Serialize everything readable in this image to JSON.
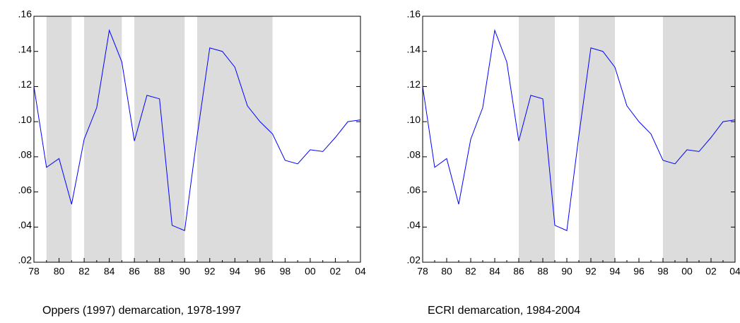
{
  "chart_data": [
    {
      "type": "line",
      "title": "Oppers (1997) demarcation, 1978-1997",
      "categories": [
        "78",
        null,
        "80",
        null,
        "82",
        null,
        "84",
        null,
        "86",
        null,
        "88",
        null,
        "90",
        null,
        "92",
        null,
        "94",
        null,
        "96",
        null,
        "98",
        null,
        "00",
        null,
        "02",
        null,
        "04"
      ],
      "series": [
        {
          "color": "#0000ff",
          "values": [
            0.12,
            0.074,
            0.079,
            0.053,
            0.09,
            0.108,
            0.152,
            0.134,
            0.089,
            0.115,
            0.113,
            0.041,
            0.038,
            0.092,
            0.142,
            0.14,
            0.131,
            0.109,
            0.1,
            0.093,
            0.078,
            0.076,
            0.084,
            0.083,
            0.091,
            0.1,
            0.101
          ]
        }
      ],
      "shaded": [
        [
          1,
          3
        ],
        [
          4,
          7
        ],
        [
          8,
          12
        ],
        [
          13,
          19
        ]
      ],
      "shade_color": "#dcdcdc",
      "ylim": [
        0.02,
        0.16
      ],
      "yticks": [
        {
          "value": 0.02,
          "label": ".02"
        },
        {
          "value": 0.04,
          "label": ".04"
        },
        {
          "value": 0.06,
          "label": ".06"
        },
        {
          "value": 0.08,
          "label": ".08"
        },
        {
          "value": 0.1,
          "label": ".10"
        },
        {
          "value": 0.12,
          "label": ".12"
        },
        {
          "value": 0.14,
          "label": ".14"
        },
        {
          "value": 0.16,
          "label": ".16"
        }
      ]
    },
    {
      "type": "line",
      "title": "ECRI demarcation, 1984-2004",
      "categories": [
        "78",
        null,
        "80",
        null,
        "82",
        null,
        "84",
        null,
        "86",
        null,
        "88",
        null,
        "90",
        null,
        "92",
        null,
        "94",
        null,
        "96",
        null,
        "98",
        null,
        "00",
        null,
        "02",
        null,
        "04"
      ],
      "series": [
        {
          "color": "#0000ff",
          "values": [
            0.12,
            0.074,
            0.079,
            0.053,
            0.09,
            0.108,
            0.152,
            0.134,
            0.089,
            0.115,
            0.113,
            0.041,
            0.038,
            0.092,
            0.142,
            0.14,
            0.131,
            0.109,
            0.1,
            0.093,
            0.078,
            0.076,
            0.084,
            0.083,
            0.091,
            0.1,
            0.101
          ]
        }
      ],
      "shaded": [
        [
          8,
          11
        ],
        [
          13,
          16
        ],
        [
          20,
          26
        ]
      ],
      "shade_color": "#dcdcdc",
      "ylim": [
        0.02,
        0.16
      ],
      "yticks": [
        {
          "value": 0.02,
          "label": ".02"
        },
        {
          "value": 0.04,
          "label": ".04"
        },
        {
          "value": 0.06,
          "label": ".06"
        },
        {
          "value": 0.08,
          "label": ".08"
        },
        {
          "value": 0.1,
          "label": ".10"
        },
        {
          "value": 0.12,
          "label": ".12"
        },
        {
          "value": 0.14,
          "label": ".14"
        },
        {
          "value": 0.16,
          "label": ".16"
        }
      ]
    }
  ]
}
